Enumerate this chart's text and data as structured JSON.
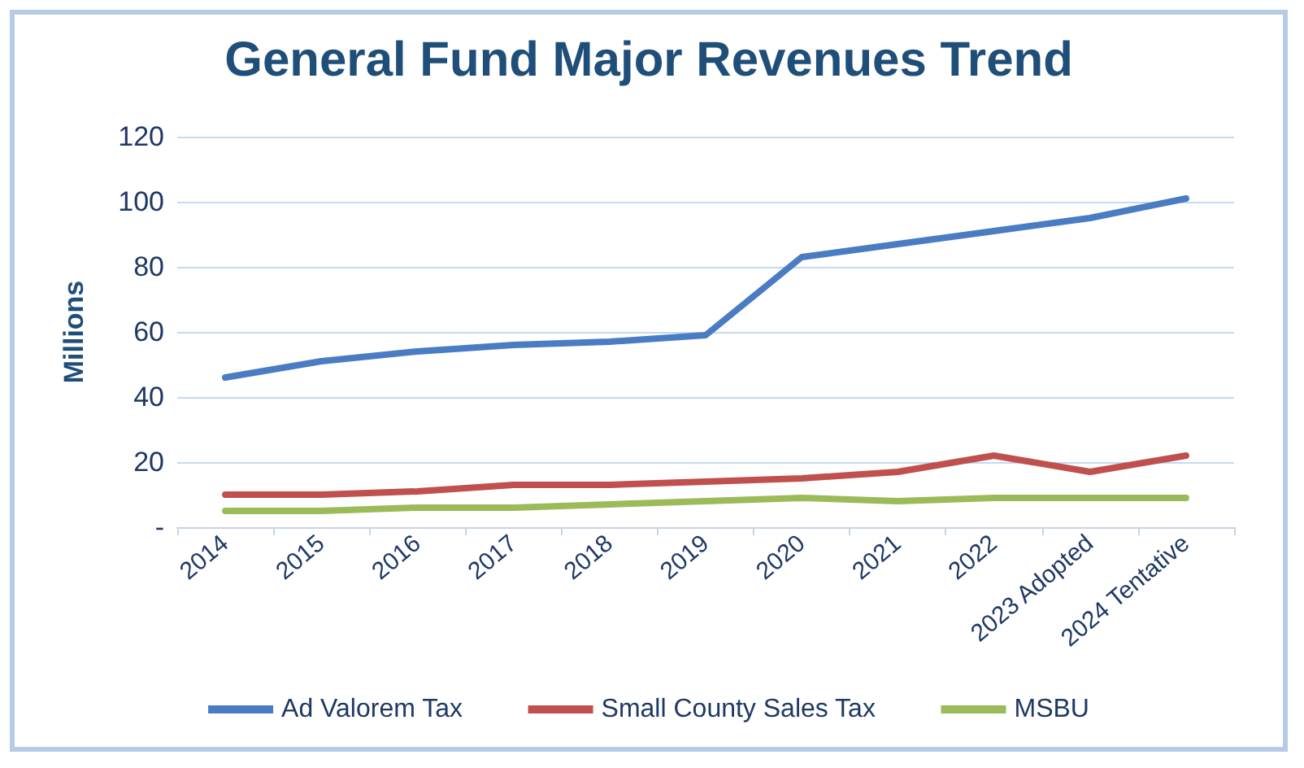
{
  "chart_data": {
    "type": "line",
    "title": "General Fund Major Revenues Trend",
    "ylabel": "Millions",
    "categories": [
      "2014",
      "2015",
      "2016",
      "2017",
      "2018",
      "2019",
      "2020",
      "2021",
      "2022",
      "2023 Adopted",
      "2024 Tentative"
    ],
    "series": [
      {
        "name": "Ad Valorem Tax",
        "color": "#4a7cc4",
        "values": [
          46,
          51,
          54,
          56,
          57,
          59,
          83,
          87,
          91,
          95,
          101
        ]
      },
      {
        "name": "Small County Sales Tax",
        "color": "#c0504d",
        "values": [
          10,
          10,
          11,
          13,
          13,
          14,
          15,
          17,
          22,
          17,
          22
        ]
      },
      {
        "name": "MSBU",
        "color": "#9bbb59",
        "values": [
          5,
          5,
          6,
          6,
          7,
          8,
          9,
          8,
          9,
          9,
          9
        ]
      }
    ],
    "ylim": [
      0,
      120
    ],
    "yticks": [
      {
        "value": 0,
        "label": "-"
      },
      20,
      40,
      60,
      80,
      100,
      120
    ],
    "grid": "y",
    "legend": "bottom",
    "marker": "none",
    "line_style": "solid"
  }
}
